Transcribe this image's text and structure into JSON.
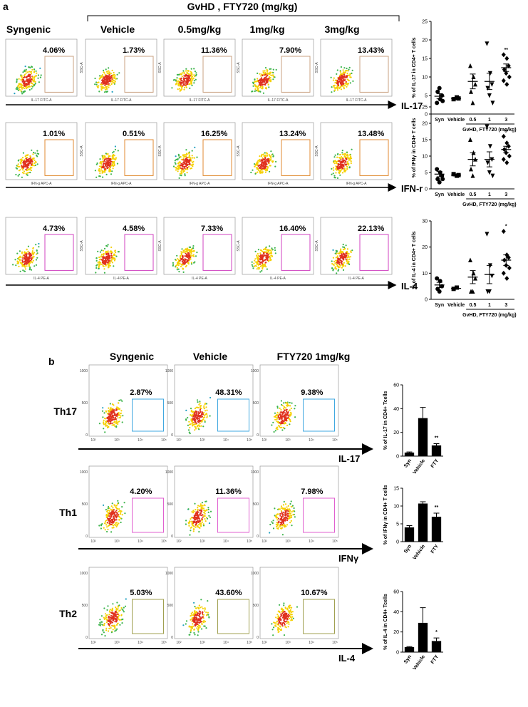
{
  "figure": {
    "panel_a": {
      "label": "a",
      "group_header": "GvHD , FTY720 (mg/kg)",
      "columns": [
        "Syngenic",
        "Vehicle",
        "0.5mg/kg",
        "1mg/kg",
        "3mg/kg"
      ],
      "y_axis_label": "SSC-A",
      "rows": [
        {
          "marker": "IL-17",
          "x_axis_label": "IL-17 FITC-A",
          "percentages": [
            "4.06%",
            "1.73%",
            "11.36%",
            "7.90%",
            "13.43%"
          ]
        },
        {
          "marker": "IFN-r",
          "x_axis_label": "IFN-g APC-A",
          "percentages": [
            "1.01%",
            "0.51%",
            "16.25%",
            "13.24%",
            "13.48%"
          ]
        },
        {
          "marker": "IL-4",
          "x_axis_label": "IL-4 PE-A",
          "percentages": [
            "4.73%",
            "4.58%",
            "7.33%",
            "16.40%",
            "22.13%"
          ]
        }
      ]
    },
    "panel_b": {
      "label": "b",
      "columns": [
        "Syngenic",
        "Vehicle",
        "FTY720 1mg/kg"
      ],
      "x_ticks": [
        "10²",
        "10³",
        "10⁴",
        "10⁵"
      ],
      "y_ticks": [
        "0",
        "500",
        "1000"
      ],
      "rows": [
        {
          "name": "Th17",
          "marker": "IL-17",
          "percentages": [
            "2.87%",
            "48.31%",
            "9.38%"
          ]
        },
        {
          "name": "Th1",
          "marker": "IFNγ",
          "percentages": [
            "4.20%",
            "11.36%",
            "7.98%"
          ]
        },
        {
          "name": "Th2",
          "marker": "IL-4",
          "percentages": [
            "5.03%",
            "43.60%",
            "10.67%"
          ]
        }
      ]
    }
  },
  "chart_data": [
    {
      "type": "dot",
      "ylabel": "% of IL-17 in CD4+ T cells",
      "xlabel": "GvHD, FTY720 (mg/kg)",
      "annotation": "**",
      "categories": [
        "Syn",
        "Vehicle",
        "0.5",
        "1",
        "3"
      ],
      "points": [
        [
          3,
          4,
          5,
          6,
          7,
          3.5
        ],
        [
          4,
          4.5,
          4.2
        ],
        [
          13,
          10,
          8,
          6,
          3
        ],
        [
          19,
          11,
          8,
          7,
          5,
          3
        ],
        [
          16,
          15,
          13,
          12,
          11,
          10,
          9,
          8
        ]
      ],
      "means": [
        4.8,
        4.2,
        8.8,
        8.8,
        12.5
      ],
      "errors": [
        0.7,
        0.3,
        2,
        2.2,
        1
      ],
      "ylim": [
        0,
        25
      ],
      "yticks": [
        0,
        5,
        10,
        15,
        20,
        25
      ]
    },
    {
      "type": "dot",
      "ylabel": "% of IFNγ in CD4+ T cells",
      "xlabel": "GvHD, FTY720 (mg/kg)",
      "annotation": "**",
      "categories": [
        "Syn",
        "Vehicle",
        "0.5",
        "1",
        "3"
      ],
      "points": [
        [
          6,
          5,
          4,
          3,
          2,
          3
        ],
        [
          4.5,
          4,
          4.2
        ],
        [
          15,
          11,
          9,
          6,
          4
        ],
        [
          19,
          13,
          9,
          8,
          5,
          4
        ],
        [
          16,
          14,
          13,
          12,
          11,
          10,
          9,
          8
        ]
      ],
      "means": [
        4.5,
        4.2,
        9,
        9,
        12
      ],
      "errors": [
        0.8,
        0.3,
        2,
        2.3,
        1
      ],
      "ylim": [
        0,
        25
      ],
      "yticks": [
        0,
        5,
        10,
        15,
        20,
        25
      ]
    },
    {
      "type": "dot",
      "ylabel": "% of IL-4 in CD4+ T cells",
      "xlabel": "GvHD, FTY720 (mg/kg)",
      "annotation": "*",
      "categories": [
        "Syn",
        "Vehicle",
        "0.5",
        "1",
        "3"
      ],
      "points": [
        [
          8,
          7,
          5,
          4,
          3
        ],
        [
          4,
          4.5
        ],
        [
          15,
          10,
          8,
          3,
          3
        ],
        [
          25,
          13,
          9,
          3,
          3
        ],
        [
          26,
          17,
          16,
          15,
          13,
          12,
          10,
          8
        ]
      ],
      "means": [
        5.5,
        4.2,
        8.5,
        9.5,
        15
      ],
      "errors": [
        1,
        0.3,
        2.5,
        3.5,
        2
      ],
      "ylim": [
        0,
        30
      ],
      "yticks": [
        0,
        10,
        20,
        30
      ]
    },
    {
      "type": "bar",
      "ylabel": "% of IL-17 in CD4+ Tcells",
      "annotation": "**",
      "color": "#000000",
      "categories": [
        "Syn",
        "Vehicle",
        "FTY"
      ],
      "values": [
        3,
        32,
        9
      ],
      "errors": [
        0.5,
        9,
        1.5
      ],
      "ylim": [
        0,
        60
      ],
      "yticks": [
        0,
        20,
        40,
        60
      ]
    },
    {
      "type": "bar",
      "ylabel": "% of IFNγ in CD4+ T cells",
      "annotation": "**",
      "color": "#000000",
      "categories": [
        "Syn",
        "Vehicle",
        "FTY"
      ],
      "values": [
        4,
        10.7,
        7
      ],
      "errors": [
        0.5,
        0.5,
        1
      ],
      "ylim": [
        0,
        15
      ],
      "yticks": [
        0,
        5,
        10,
        15
      ]
    },
    {
      "type": "bar",
      "ylabel": "% of IL-4 in CD4+ Tcells",
      "annotation": "*",
      "color": "#000000",
      "categories": [
        "Syn",
        "Vehicle",
        "FTY"
      ],
      "values": [
        5,
        29,
        11
      ],
      "errors": [
        0.5,
        15,
        3
      ],
      "ylim": [
        0,
        60
      ],
      "yticks": [
        0,
        20,
        40,
        60
      ]
    }
  ]
}
